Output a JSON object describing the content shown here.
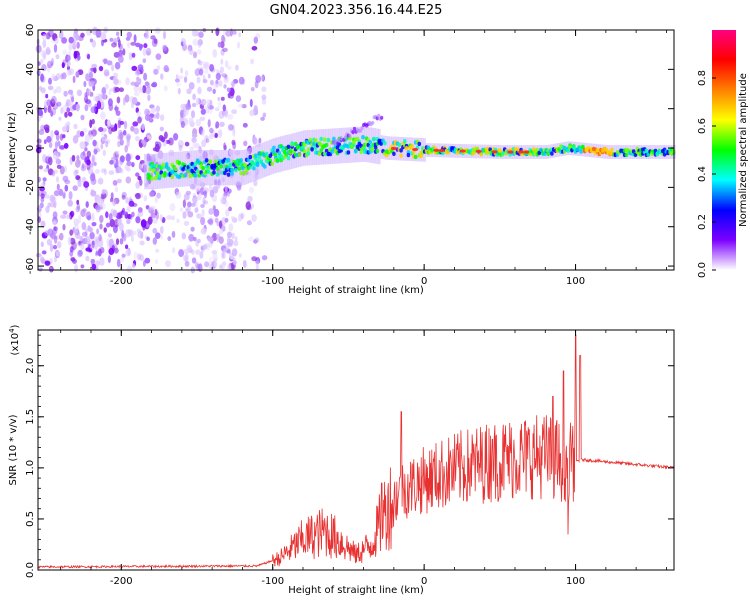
{
  "title": "GN04.2023.356.16.44.E25",
  "chart_data": [
    {
      "type": "heatmap",
      "xlabel": "Height of straight line (km)",
      "ylabel": "Frequency (Hz)",
      "xlim": [
        -255,
        165
      ],
      "ylim": [
        -62,
        60
      ],
      "xticks": [
        -200,
        -100,
        0,
        100
      ],
      "yticks": [
        -60,
        -40,
        -20,
        0,
        20,
        40,
        60
      ],
      "colorbar": {
        "label": "Normalized spectral amplitude",
        "range": [
          0,
          1
        ],
        "ticks": [
          "0.0",
          "0.2",
          "0.4",
          "0.6",
          "0.8"
        ],
        "colormap": [
          "#ffffff",
          "#7b00ff",
          "#0000ff",
          "#00ffff",
          "#00ff00",
          "#ffff00",
          "#ff8000",
          "#ff0000",
          "#ff0080"
        ]
      },
      "trace_center_hz": [
        {
          "x": -180,
          "y": -12
        },
        {
          "x": -150,
          "y": -10
        },
        {
          "x": -120,
          "y": -10
        },
        {
          "x": -100,
          "y": -4
        },
        {
          "x": -80,
          "y": 0
        },
        {
          "x": -60,
          "y": 1
        },
        {
          "x": -40,
          "y": 2
        },
        {
          "x": -25,
          "y": 0
        },
        {
          "x": 0,
          "y": -1
        },
        {
          "x": 50,
          "y": -2
        },
        {
          "x": 80,
          "y": -2
        },
        {
          "x": 95,
          "y": 0
        },
        {
          "x": 120,
          "y": -2
        },
        {
          "x": 165,
          "y": -2
        }
      ]
    },
    {
      "type": "line",
      "xlabel": "Height of straight line (km)",
      "ylabel": "SNR (10 * v/v)",
      "y_multiplier": "(x10",
      "y_multiplier_exp": "4",
      "y_multiplier_close": ")",
      "xlim": [
        -255,
        165
      ],
      "ylim": [
        0,
        2.35
      ],
      "xticks": [
        -200,
        -100,
        0,
        100
      ],
      "yticks": [
        "0.0",
        "0.5",
        "1.0",
        "1.5",
        "2.0"
      ],
      "color": "#e83030",
      "envelope": [
        {
          "x": -255,
          "y": 0.03
        },
        {
          "x": -110,
          "y": 0.04
        },
        {
          "x": -95,
          "y": 0.12
        },
        {
          "x": -80,
          "y": 0.3
        },
        {
          "x": -65,
          "y": 0.38
        },
        {
          "x": -55,
          "y": 0.28
        },
        {
          "x": -45,
          "y": 0.15
        },
        {
          "x": -35,
          "y": 0.25
        },
        {
          "x": -25,
          "y": 0.6
        },
        {
          "x": -15,
          "y": 0.78
        },
        {
          "x": 0,
          "y": 0.88
        },
        {
          "x": 20,
          "y": 0.98
        },
        {
          "x": 40,
          "y": 1.05
        },
        {
          "x": 60,
          "y": 1.1
        },
        {
          "x": 80,
          "y": 1.12
        },
        {
          "x": 95,
          "y": 1.05
        },
        {
          "x": 105,
          "y": 1.08
        },
        {
          "x": 165,
          "y": 1.0
        }
      ],
      "spikes": [
        {
          "x": -60,
          "y": 0.5
        },
        {
          "x": -28,
          "y": 0.85
        },
        {
          "x": -15,
          "y": 1.55
        },
        {
          "x": 45,
          "y": 1.28
        },
        {
          "x": 85,
          "y": 1.7
        },
        {
          "x": 92,
          "y": 1.95
        },
        {
          "x": 100,
          "y": 2.3
        },
        {
          "x": 103,
          "y": 2.1
        }
      ]
    }
  ]
}
